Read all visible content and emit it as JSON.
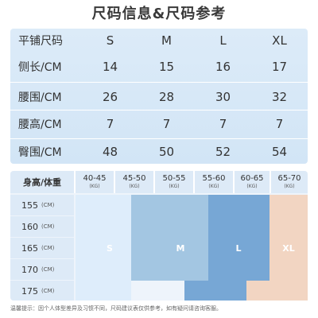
{
  "title": "尺码信息&尺码参考",
  "measure_table": {
    "header_label": "平铺尺码",
    "sizes": [
      "S",
      "M",
      "L",
      "XL"
    ],
    "rows": [
      {
        "label": "侧长/CM",
        "values": [
          "14",
          "15",
          "16",
          "17"
        ]
      },
      {
        "label": "腰围/CM",
        "values": [
          "26",
          "28",
          "30",
          "32"
        ]
      },
      {
        "label": "腰高/CM",
        "values": [
          "7",
          "7",
          "7",
          "7"
        ]
      },
      {
        "label": "臀围/CM",
        "values": [
          "48",
          "50",
          "52",
          "54"
        ]
      }
    ]
  },
  "size_chart": {
    "corner_label": "身高/体重",
    "weight_unit": "(KG)",
    "height_unit": "(CM)",
    "weights": [
      "40-45",
      "45-50",
      "50-55",
      "55-60",
      "60-65",
      "65-70"
    ],
    "heights": [
      "155",
      "160",
      "165",
      "170",
      "175"
    ],
    "size_labels": [
      "S",
      "M",
      "L",
      "XL"
    ],
    "colors": {
      "S": "#deedfb",
      "M": "#a3c6e2",
      "L": "#77a7d5",
      "XL": "#f2d5c2"
    }
  },
  "footnote": "温馨提示：因个人体型差异及习惯不同，尺码建议表仅供参考，如有疑问请咨询客服。"
}
